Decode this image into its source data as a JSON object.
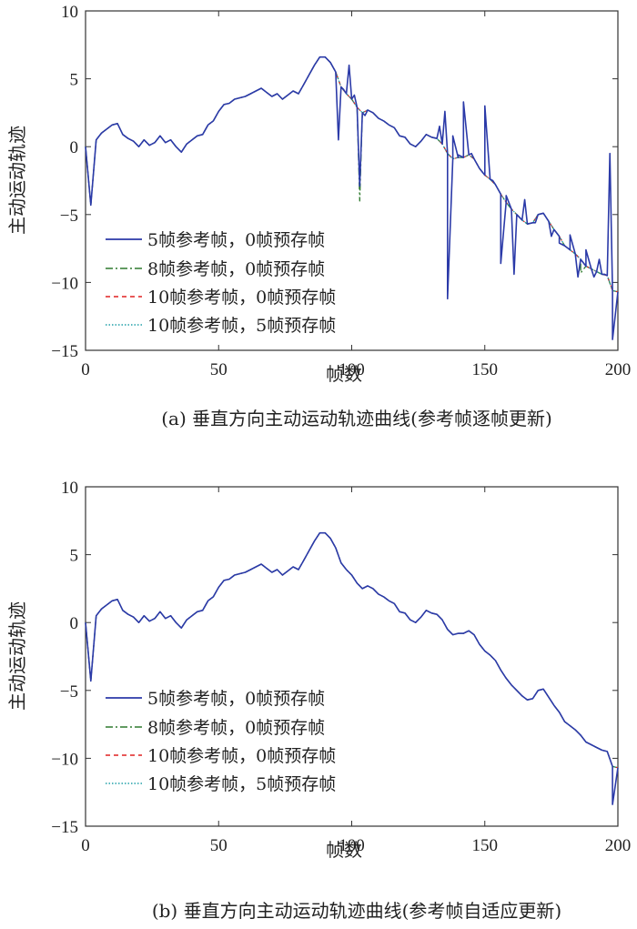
{
  "chart_data": [
    {
      "type": "line",
      "caption": "(a) 垂直方向主动运动轨迹曲线(参考帧逐帧更新)",
      "xlabel": "帧数",
      "ylabel": "主动运动轨迹",
      "xlim": [
        0,
        200
      ],
      "ylim": [
        -15,
        10
      ],
      "xticks": [
        "0",
        "50",
        "100",
        "150",
        "200"
      ],
      "yticks": [
        "10",
        "5",
        "0",
        "−5",
        "−10",
        "−15"
      ],
      "legend_position": "bottom-left",
      "base_x": [
        0,
        2,
        4,
        6,
        8,
        10,
        12,
        14,
        16,
        18,
        20,
        22,
        24,
        26,
        28,
        30,
        32,
        34,
        36,
        38,
        40,
        42,
        44,
        46,
        48,
        50,
        52,
        54,
        56,
        58,
        60,
        62,
        64,
        66,
        68,
        70,
        72,
        74,
        76,
        78,
        80,
        82,
        84,
        86,
        88,
        90,
        92,
        94,
        96,
        98,
        100,
        102,
        104,
        106,
        108,
        110,
        112,
        114,
        116,
        118,
        120,
        122,
        124,
        126,
        128,
        130,
        132,
        134,
        136,
        138,
        140,
        142,
        144,
        146,
        148,
        150,
        152,
        154,
        156,
        158,
        160,
        162,
        164,
        166,
        168,
        170,
        172,
        174,
        176,
        178,
        180,
        182,
        184,
        186,
        188,
        190,
        192,
        194,
        196,
        198,
        200
      ],
      "base_y": [
        0,
        -4.3,
        0.5,
        1.0,
        1.3,
        1.6,
        1.7,
        0.9,
        0.6,
        0.4,
        0.0,
        0.5,
        0.1,
        0.3,
        0.8,
        0.3,
        0.5,
        0.0,
        -0.4,
        0.2,
        0.5,
        0.8,
        0.9,
        1.6,
        1.9,
        2.6,
        3.1,
        3.2,
        3.5,
        3.6,
        3.7,
        3.9,
        4.1,
        4.3,
        4.0,
        3.7,
        3.9,
        3.5,
        3.8,
        4.1,
        3.9,
        4.6,
        5.3,
        6.0,
        6.6,
        6.6,
        6.2,
        5.5,
        4.4,
        3.9,
        3.5,
        2.9,
        2.5,
        2.7,
        2.5,
        2.1,
        1.9,
        1.6,
        1.4,
        0.8,
        0.7,
        0.2,
        0.0,
        0.4,
        0.9,
        0.7,
        0.6,
        0.2,
        -0.5,
        -0.9,
        -0.8,
        -0.8,
        -0.6,
        -0.9,
        -1.6,
        -2.1,
        -2.4,
        -2.8,
        -3.5,
        -4.1,
        -4.6,
        -5.0,
        -5.4,
        -5.7,
        -5.6,
        -5.0,
        -4.9,
        -5.5,
        -6.1,
        -6.6,
        -7.3,
        -7.6,
        -7.9,
        -8.3,
        -8.8,
        -9.0,
        -9.2,
        -9.4,
        -9.5,
        -10.6,
        -10.7
      ],
      "series": [
        {
          "name": "5帧参考帧，0帧预存帧",
          "color": "#2b3aa8",
          "dash": "solid",
          "spikes": [
            [
              95,
              0.5
            ],
            [
              97,
              4.2
            ],
            [
              99,
              6.0
            ],
            [
              101,
              3.8
            ],
            [
              103,
              -2.9
            ],
            [
              105,
              2.3
            ],
            [
              133,
              1.5
            ],
            [
              135,
              2.6
            ],
            [
              136,
              -11.2
            ],
            [
              138,
              0.8
            ],
            [
              140,
              -0.6
            ],
            [
              142,
              3.3
            ],
            [
              145,
              -0.5
            ],
            [
              150,
              3.0
            ],
            [
              153,
              -2.5
            ],
            [
              156,
              -8.6
            ],
            [
              158,
              -3.6
            ],
            [
              161,
              -9.4
            ],
            [
              165,
              -3.9
            ],
            [
              169,
              -5.6
            ],
            [
              175,
              -6.6
            ],
            [
              178,
              -7.1
            ],
            [
              182,
              -6.5
            ],
            [
              185,
              -9.6
            ],
            [
              188,
              -7.6
            ],
            [
              191,
              -9.6
            ],
            [
              193,
              -8.3
            ],
            [
              195,
              -9.4
            ],
            [
              197,
              -0.5
            ],
            [
              198,
              -14.2
            ]
          ]
        },
        {
          "name": "8帧参考帧，0帧预存帧",
          "color": "#2e7a2e",
          "dash": "dashdot",
          "spikes": [
            [
              103,
              -4.0
            ],
            [
              186,
              -9.3
            ]
          ]
        },
        {
          "name": "10帧参考帧，0帧预存帧",
          "color": "#e02020",
          "dash": "dashed",
          "spikes": []
        },
        {
          "name": "10帧参考帧，5帧预存帧",
          "color": "#20a0a8",
          "dash": "dotted",
          "spikes": []
        }
      ]
    },
    {
      "type": "line",
      "caption": "(b) 垂直方向主动运动轨迹曲线(参考帧自适应更新)",
      "xlabel": "帧数",
      "ylabel": "主动运动轨迹",
      "xlim": [
        0,
        200
      ],
      "ylim": [
        -15,
        10
      ],
      "xticks": [
        "0",
        "50",
        "100",
        "150",
        "200"
      ],
      "yticks": [
        "10",
        "5",
        "0",
        "−5",
        "−10",
        "−15"
      ],
      "legend_position": "bottom-left",
      "base_x": [
        0,
        2,
        4,
        6,
        8,
        10,
        12,
        14,
        16,
        18,
        20,
        22,
        24,
        26,
        28,
        30,
        32,
        34,
        36,
        38,
        40,
        42,
        44,
        46,
        48,
        50,
        52,
        54,
        56,
        58,
        60,
        62,
        64,
        66,
        68,
        70,
        72,
        74,
        76,
        78,
        80,
        82,
        84,
        86,
        88,
        90,
        92,
        94,
        96,
        98,
        100,
        102,
        104,
        106,
        108,
        110,
        112,
        114,
        116,
        118,
        120,
        122,
        124,
        126,
        128,
        130,
        132,
        134,
        136,
        138,
        140,
        142,
        144,
        146,
        148,
        150,
        152,
        154,
        156,
        158,
        160,
        162,
        164,
        166,
        168,
        170,
        172,
        174,
        176,
        178,
        180,
        182,
        184,
        186,
        188,
        190,
        192,
        194,
        196,
        198,
        200
      ],
      "base_y": [
        0,
        -4.3,
        0.5,
        1.0,
        1.3,
        1.6,
        1.7,
        0.9,
        0.6,
        0.4,
        0.0,
        0.5,
        0.1,
        0.3,
        0.8,
        0.3,
        0.5,
        0.0,
        -0.4,
        0.2,
        0.5,
        0.8,
        0.9,
        1.6,
        1.9,
        2.6,
        3.1,
        3.2,
        3.5,
        3.6,
        3.7,
        3.9,
        4.1,
        4.3,
        4.0,
        3.7,
        3.9,
        3.5,
        3.8,
        4.1,
        3.9,
        4.6,
        5.3,
        6.0,
        6.6,
        6.6,
        6.2,
        5.5,
        4.4,
        3.9,
        3.5,
        2.9,
        2.5,
        2.7,
        2.5,
        2.1,
        1.9,
        1.6,
        1.4,
        0.8,
        0.7,
        0.2,
        0.0,
        0.4,
        0.9,
        0.7,
        0.6,
        0.2,
        -0.5,
        -0.9,
        -0.8,
        -0.8,
        -0.6,
        -0.9,
        -1.6,
        -2.1,
        -2.4,
        -2.8,
        -3.5,
        -4.1,
        -4.6,
        -5.0,
        -5.4,
        -5.7,
        -5.6,
        -5.0,
        -4.9,
        -5.5,
        -6.1,
        -6.6,
        -7.3,
        -7.6,
        -7.9,
        -8.3,
        -8.8,
        -9.0,
        -9.2,
        -9.4,
        -9.5,
        -10.6,
        -10.7
      ],
      "series": [
        {
          "name": "5帧参考帧，0帧预存帧",
          "color": "#2b3aa8",
          "dash": "solid",
          "spikes": [
            [
              198,
              -13.4
            ]
          ]
        },
        {
          "name": "8帧参考帧，0帧预存帧",
          "color": "#2e7a2e",
          "dash": "dashdot",
          "spikes": []
        },
        {
          "name": "10帧参考帧，0帧预存帧",
          "color": "#e02020",
          "dash": "dashed",
          "spikes": []
        },
        {
          "name": "10帧参考帧，5帧预存帧",
          "color": "#20a0a8",
          "dash": "dotted",
          "spikes": []
        }
      ]
    }
  ]
}
